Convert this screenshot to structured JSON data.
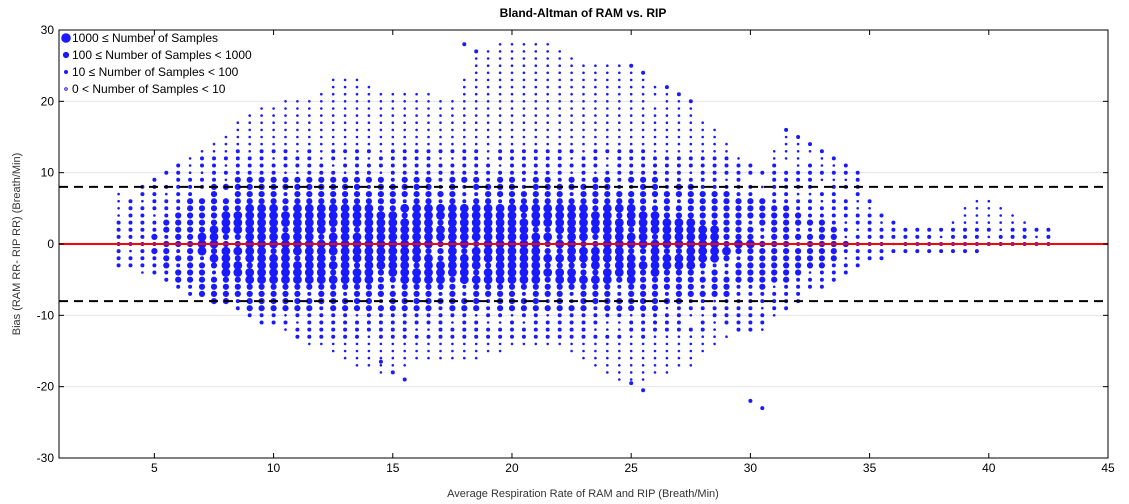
{
  "chart_data": {
    "type": "scatter",
    "title": "Bland-Altman of RAM vs. RIP",
    "xlabel": "Average Respiration Rate of RAM and RIP (Breath/Min)",
    "ylabel": "Bias (RAM RR- RIP RR) (Breath/Min)",
    "xlim": [
      1,
      45
    ],
    "ylim": [
      -30,
      30
    ],
    "xticks": [
      5,
      10,
      15,
      20,
      25,
      30,
      35,
      40,
      45
    ],
    "yticks": [
      -30,
      -20,
      -10,
      0,
      10,
      20,
      30
    ],
    "grid": "horizontal",
    "legend_position": "top-left",
    "mean_bias": 0,
    "limits_of_agreement": [
      -8,
      8
    ],
    "colors": {
      "points": "#1a1aff",
      "mean_line": "#ff0000",
      "limit_lines": "#000000",
      "grid": "#e4e4e4"
    },
    "legend": [
      {
        "label": "1000 ≤ Number of Samples",
        "size_class": 4
      },
      {
        "label": "100 ≤ Number of Samples < 1000",
        "size_class": 3
      },
      {
        "label": "10 ≤ Number of Samples < 100",
        "size_class": 2
      },
      {
        "label": "0 < Number of Samples < 10",
        "size_class": 1
      }
    ],
    "envelope": [
      [
        3.5,
        -3,
        7
      ],
      [
        4.5,
        -4,
        8
      ],
      [
        5.5,
        -5,
        10
      ],
      [
        6.5,
        -7,
        12
      ],
      [
        7.5,
        -8,
        14
      ],
      [
        8.5,
        -9,
        17
      ],
      [
        9.5,
        -11,
        19
      ],
      [
        10.5,
        -12,
        20
      ],
      [
        11.5,
        -14,
        20
      ],
      [
        12.5,
        -15,
        23
      ],
      [
        13.5,
        -17,
        23
      ],
      [
        14.5,
        -18,
        21
      ],
      [
        15.5,
        -17,
        21
      ],
      [
        16.5,
        -16,
        21
      ],
      [
        17.5,
        -16,
        20
      ],
      [
        18.5,
        -16,
        27
      ],
      [
        19.5,
        -15,
        28
      ],
      [
        20.5,
        -14,
        28
      ],
      [
        21.5,
        -14,
        28
      ],
      [
        22.5,
        -15,
        26
      ],
      [
        23.5,
        -17,
        25
      ],
      [
        24.5,
        -19,
        25
      ],
      [
        25.5,
        -19,
        23
      ],
      [
        26.5,
        -18,
        21
      ],
      [
        27.5,
        -17,
        19
      ],
      [
        28.5,
        -14,
        16
      ],
      [
        29.5,
        -12,
        13
      ],
      [
        30.5,
        -12,
        10
      ],
      [
        31.5,
        -9,
        16
      ],
      [
        32.5,
        -7,
        14
      ],
      [
        33.5,
        -5,
        11
      ],
      [
        34.5,
        -3,
        9
      ],
      [
        35.5,
        -2,
        4
      ],
      [
        36.5,
        -1,
        2
      ],
      [
        37.5,
        -1,
        2
      ],
      [
        38.5,
        -1,
        3
      ],
      [
        39.5,
        -1,
        7
      ],
      [
        40.5,
        0,
        5
      ],
      [
        41.5,
        0,
        3
      ],
      [
        42.5,
        0,
        2
      ]
    ],
    "outliers": [
      {
        "x": 14.5,
        "y": -16.5
      },
      {
        "x": 15,
        "y": -18
      },
      {
        "x": 15.5,
        "y": -19
      },
      {
        "x": 25,
        "y": -19.5
      },
      {
        "x": 25.5,
        "y": -20.5
      },
      {
        "x": 30.5,
        "y": -23
      },
      {
        "x": 30,
        "y": -22
      },
      {
        "x": 18,
        "y": 28
      },
      {
        "x": 18.5,
        "y": 27
      },
      {
        "x": 25,
        "y": 25
      },
      {
        "x": 25.5,
        "y": 24
      },
      {
        "x": 26.5,
        "y": 22
      },
      {
        "x": 27,
        "y": 21
      },
      {
        "x": 27.5,
        "y": 20
      },
      {
        "x": 31.5,
        "y": 16
      },
      {
        "x": 32,
        "y": 15
      },
      {
        "x": 32.5,
        "y": 14
      },
      {
        "x": 33,
        "y": 13
      },
      {
        "x": 33.5,
        "y": 12
      },
      {
        "x": 34,
        "y": 11
      },
      {
        "x": 34.5,
        "y": 10
      }
    ]
  }
}
